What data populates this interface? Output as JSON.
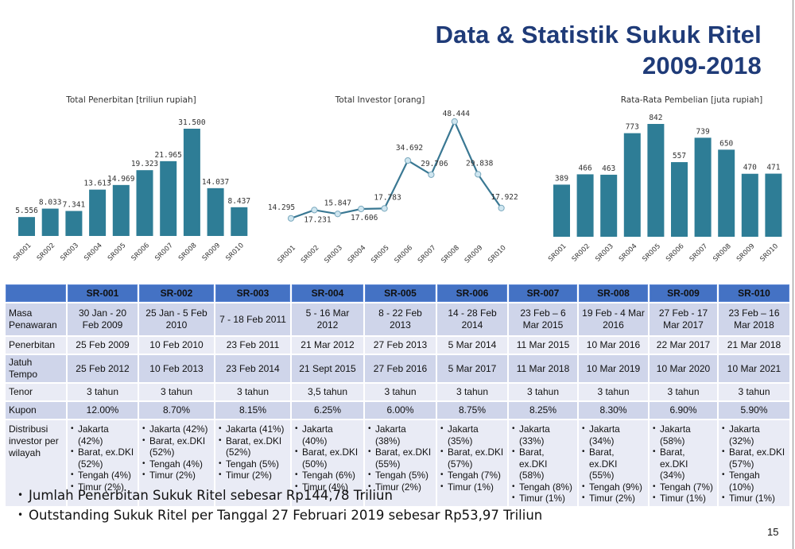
{
  "header": {
    "title_line1": "Data & Statistik Sukuk Ritel",
    "title_line2": "2009-2018",
    "title_color": "#1f3b78"
  },
  "chart_data": [
    {
      "type": "bar",
      "title": "Total Penerbitan [triliun rupiah]",
      "categories": [
        "SR001",
        "SR002",
        "SR003",
        "SR004",
        "SR005",
        "SR006",
        "SR007",
        "SR008",
        "SR009",
        "SR010"
      ],
      "values": [
        5.556,
        8.033,
        7.341,
        13.613,
        14.969,
        19.323,
        21.965,
        31.5,
        14.037,
        8.437
      ],
      "value_labels": [
        "5.556",
        "8.033",
        "7.341",
        "13.613",
        "14.969",
        "19.323",
        "21.965",
        "31.500",
        "14.037",
        "8.437"
      ],
      "xlabel": "",
      "ylabel": "",
      "grid": false,
      "color": "#2e7d96"
    },
    {
      "type": "line",
      "title": "Total Investor [orang]",
      "categories": [
        "SR001",
        "SR002",
        "SR003",
        "SR004",
        "SR005",
        "SR006",
        "SR007",
        "SR008",
        "SR009",
        "SR010"
      ],
      "values": [
        14295,
        17231,
        15847,
        17606,
        17783,
        34692,
        29706,
        48444,
        29838,
        17922
      ],
      "value_labels": [
        "14.295",
        "17.231",
        "15.847",
        "17.606",
        "17.783",
        "34.692",
        "29.706",
        "48.444",
        "29.838",
        "17.922"
      ],
      "xlabel": "",
      "ylabel": "",
      "grid": false,
      "color": "#3a7893",
      "marker_color": "#cfe6f0"
    },
    {
      "type": "bar",
      "title": "Rata-Rata Pembelian [juta rupiah]",
      "categories": [
        "SR001",
        "SR002",
        "SR003",
        "SR004",
        "SR005",
        "SR006",
        "SR007",
        "SR008",
        "SR009",
        "SR010"
      ],
      "values": [
        389,
        466,
        463,
        773,
        842,
        557,
        739,
        650,
        470,
        471
      ],
      "value_labels": [
        "389",
        "466",
        "463",
        "773",
        "842",
        "557",
        "739",
        "650",
        "470",
        "471"
      ],
      "xlabel": "",
      "ylabel": "",
      "grid": false,
      "color": "#2e7d96"
    }
  ],
  "table": {
    "header_color": "#4472c4",
    "columns": [
      "",
      "SR-001",
      "SR-002",
      "SR-003",
      "SR-004",
      "SR-005",
      "SR-006",
      "SR-007",
      "SR-008",
      "SR-009",
      "SR-010"
    ],
    "rows": [
      {
        "label": "Masa Penawaran",
        "cells": [
          "30 Jan - 20 Feb 2009",
          "25 Jan - 5 Feb 2010",
          "7 - 18 Feb 2011",
          "5 - 16 Mar 2012",
          "8 - 22 Feb 2013",
          "14 - 28 Feb 2014",
          "23 Feb – 6 Mar 2015",
          "19 Feb - 4 Mar 2016",
          "27 Feb - 17 Mar 2017",
          "23 Feb – 16 Mar 2018"
        ]
      },
      {
        "label": "Penerbitan",
        "cells": [
          "25 Feb 2009",
          "10 Feb 2010",
          "23 Feb 2011",
          "21 Mar 2012",
          "27 Feb 2013",
          "5 Mar 2014",
          "11 Mar 2015",
          "10 Mar 2016",
          "22 Mar 2017",
          "21 Mar 2018"
        ]
      },
      {
        "label": "Jatuh Tempo",
        "cells": [
          "25 Feb 2012",
          "10 Feb 2013",
          "23 Feb 2014",
          "21 Sept 2015",
          "27 Feb 2016",
          "5 Mar 2017",
          "11 Mar 2018",
          "10 Mar 2019",
          "10 Mar 2020",
          "10 Mar 2021"
        ]
      },
      {
        "label": "Tenor",
        "cells": [
          "3 tahun",
          "3 tahun",
          "3 tahun",
          "3,5 tahun",
          "3 tahun",
          "3 tahun",
          "3 tahun",
          "3 tahun",
          "3 tahun",
          "3 tahun"
        ]
      },
      {
        "label": "Kupon",
        "cells": [
          "12.00%",
          "8.70%",
          "8.15%",
          "6.25%",
          "6.00%",
          "8.75%",
          "8.25%",
          "8.30%",
          "6.90%",
          "5.90%"
        ]
      },
      {
        "label": "Distribusi investor per wilayah",
        "cells": [
          [
            "Jakarta (42%)",
            "Barat, ex.DKI (52%)",
            "Tengah (4%)",
            "Timur  (2%)"
          ],
          [
            "Jakarta (42%)",
            "Barat, ex.DKI (52%)",
            "Tengah (4%)",
            "Timur  (2%)"
          ],
          [
            "Jakarta (41%)",
            "Barat, ex.DKI (52%)",
            "Tengah (5%)",
            "Timur (2%)"
          ],
          [
            "Jakarta (40%)",
            "Barat, ex.DKI (50%)",
            "Tengah (6%)",
            "Timur (4%)"
          ],
          [
            "Jakarta (38%)",
            "Barat, ex.DKI (55%)",
            "Tengah (5%)",
            "Timur (2%)"
          ],
          [
            "Jakarta (35%)",
            "Barat, ex.DKI (57%)",
            "Tengah (7%)",
            "Timur (1%)"
          ],
          [
            "Jakarta (33%)",
            "Barat, ex.DKI (58%)",
            "Tengah (8%)",
            "Timur (1%)"
          ],
          [
            "Jakarta (34%)",
            "Barat, ex.DKI (55%)",
            "Tengah (9%)",
            "Timur (2%)"
          ],
          [
            "Jakarta (58%)",
            "Barat, ex.DKI (34%)",
            "Tengah (7%)",
            "Timur (1%)"
          ],
          [
            "Jakarta (32%)",
            "Barat, ex.DKI (57%)",
            "Tengah (10%)",
            "Timur (1%)"
          ]
        ]
      }
    ]
  },
  "notes": [
    "Jumlah Penerbitan Sukuk Ritel sebesar Rp144,78 Triliun",
    "Outstanding Sukuk Ritel per Tanggal 27 Februari 2019 sebesar Rp53,97 Triliun"
  ],
  "page_number": "15"
}
